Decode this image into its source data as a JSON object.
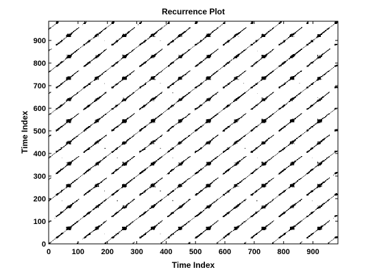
{
  "chart_data": {
    "type": "heatmap",
    "subtype": "recurrence-plot",
    "title": "Recurrence Plot",
    "xlabel": "Time Index",
    "ylabel": "Time Index",
    "xlim": [
      0,
      985
    ],
    "ylim": [
      0,
      985
    ],
    "xticks": [
      0,
      100,
      200,
      300,
      400,
      500,
      600,
      700,
      800,
      900
    ],
    "yticks": [
      0,
      100,
      200,
      300,
      400,
      500,
      600,
      700,
      800,
      900
    ],
    "period": 95,
    "n_points": 985,
    "grid": false,
    "colormap": "binary",
    "colors": {
      "recurrent": "#000000",
      "background": "#ffffff",
      "axes": "#000000"
    }
  }
}
